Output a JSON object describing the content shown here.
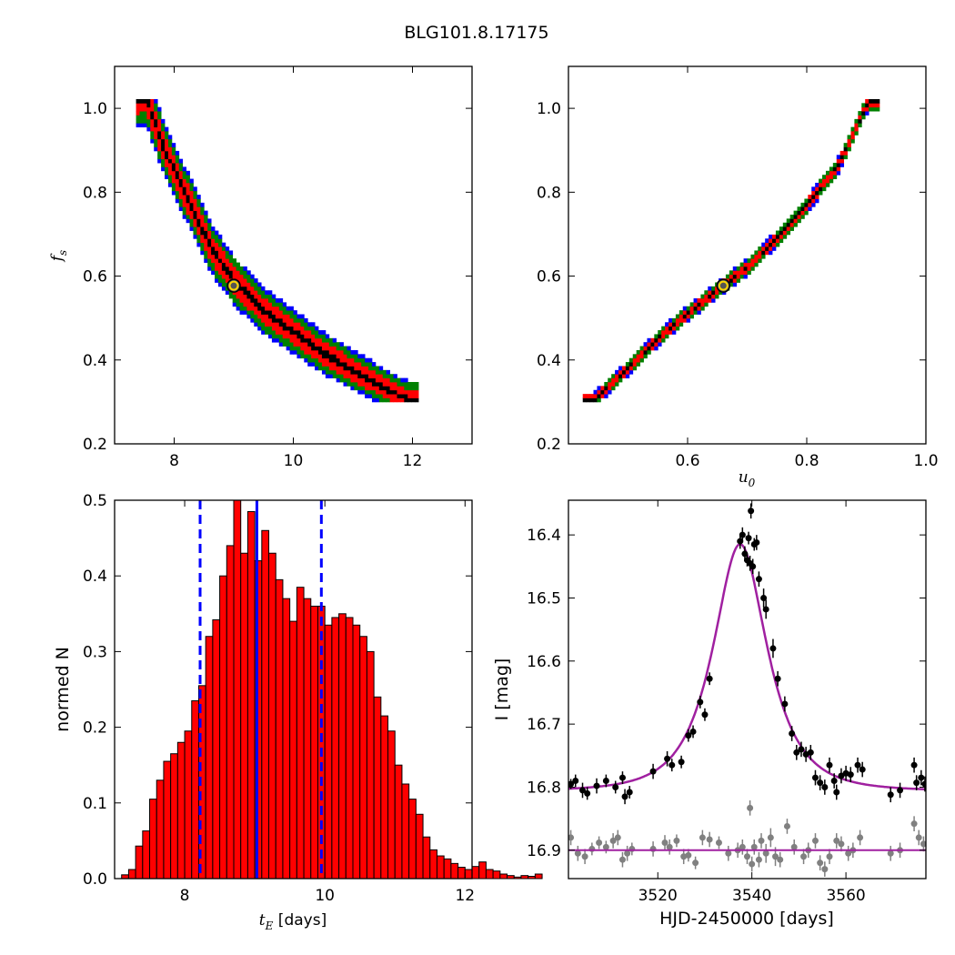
{
  "figure_title": "BLG101.8.17175",
  "chart_data": [
    {
      "type": "heatmap",
      "panel": "top-left",
      "xlabel": "",
      "ylabel": "f_s",
      "ylabel_main": "f",
      "ylabel_sub": "s",
      "xlim": [
        7.0,
        13.0
      ],
      "ylim": [
        0.2,
        1.1
      ],
      "xticks": [
        8,
        10,
        12
      ],
      "xticklabels": [
        "8",
        "10",
        "12"
      ],
      "yticks": [
        0.2,
        0.4,
        0.6,
        0.8,
        1.0
      ],
      "yticklabels": [
        "0.2",
        "0.4",
        "0.6",
        "0.8",
        "1.0"
      ],
      "confidence_colors": {
        "outer": "#0000ff",
        "mid": "#008000",
        "inner": "#ff0000",
        "core": "#000000"
      },
      "ridge": [
        [
          7.5,
          1.02
        ],
        [
          7.8,
          0.9
        ],
        [
          8.2,
          0.78
        ],
        [
          8.6,
          0.66
        ],
        [
          9.0,
          0.58
        ],
        [
          9.5,
          0.51
        ],
        [
          10.0,
          0.46
        ],
        [
          10.5,
          0.41
        ],
        [
          11.0,
          0.37
        ],
        [
          11.5,
          0.33
        ],
        [
          11.9,
          0.3
        ]
      ],
      "best_fit": [
        9.0,
        0.577
      ]
    },
    {
      "type": "heatmap",
      "panel": "top-right",
      "xlabel": "u_0",
      "xlabel_main": "u",
      "xlabel_sub": "0",
      "ylabel": "",
      "xlim": [
        0.4,
        1.0
      ],
      "ylim": [
        0.2,
        1.1
      ],
      "xticks": [
        0.6,
        0.8,
        1.0
      ],
      "xticklabels": [
        "0.6",
        "0.8",
        "1.0"
      ],
      "yticks": [
        0.2,
        0.4,
        0.6,
        0.8,
        1.0
      ],
      "yticklabels": [
        "0.2",
        "0.4",
        "0.6",
        "0.8",
        "1.0"
      ],
      "confidence_colors": {
        "outer": "#0000ff",
        "mid": "#008000",
        "inner": "#ff0000",
        "core": "#000000"
      },
      "ridge": [
        [
          0.44,
          0.3
        ],
        [
          0.5,
          0.38
        ],
        [
          0.55,
          0.45
        ],
        [
          0.6,
          0.51
        ],
        [
          0.66,
          0.577
        ],
        [
          0.7,
          0.62
        ],
        [
          0.75,
          0.69
        ],
        [
          0.8,
          0.77
        ],
        [
          0.85,
          0.86
        ],
        [
          0.9,
          1.01
        ]
      ],
      "best_fit": [
        0.66,
        0.577
      ]
    },
    {
      "type": "bar",
      "panel": "bottom-left",
      "xlabel": "t_E",
      "xlabel_main": "t",
      "xlabel_sub": "E",
      "xlabel_suffix": "[days]",
      "ylabel": "normed N",
      "xlim": [
        7.0,
        12.1
      ],
      "ylim": [
        0.0,
        0.5
      ],
      "xticks": [
        8,
        10,
        12
      ],
      "xticklabels": [
        "8",
        "10",
        "12"
      ],
      "yticks": [
        0.0,
        0.1,
        0.2,
        0.3,
        0.4,
        0.5
      ],
      "yticklabels": [
        "0.0",
        "0.1",
        "0.2",
        "0.3",
        "0.4",
        "0.5"
      ],
      "bin_start": 7.1,
      "bin_width": 0.1,
      "values": [
        0.005,
        0.012,
        0.043,
        0.063,
        0.105,
        0.13,
        0.155,
        0.165,
        0.18,
        0.195,
        0.235,
        0.255,
        0.32,
        0.342,
        0.4,
        0.44,
        0.5,
        0.43,
        0.485,
        0.42,
        0.46,
        0.43,
        0.395,
        0.37,
        0.34,
        0.385,
        0.37,
        0.36,
        0.36,
        0.335,
        0.345,
        0.35,
        0.345,
        0.335,
        0.32,
        0.3,
        0.24,
        0.215,
        0.195,
        0.15,
        0.125,
        0.105,
        0.085,
        0.055,
        0.038,
        0.03,
        0.026,
        0.02,
        0.015,
        0.012,
        0.016,
        0.022,
        0.012,
        0.01,
        0.006,
        0.004,
        0.002,
        0.004,
        0.003,
        0.006
      ],
      "bar_color": "#ff0000",
      "median": 9.03,
      "lower": 8.22,
      "upper": 9.95
    },
    {
      "type": "line",
      "panel": "bottom-right",
      "xlabel": "HJD-2450000 [days]",
      "ylabel": "I [mag]",
      "xlim": [
        3501,
        3577
      ],
      "ylim": [
        16.945,
        16.345
      ],
      "inverted_y": true,
      "xticks": [
        3520,
        3540,
        3560
      ],
      "xticklabels": [
        "3520",
        "3540",
        "3560"
      ],
      "yticks": [
        16.4,
        16.5,
        16.6,
        16.7,
        16.8,
        16.9
      ],
      "yticklabels": [
        "16.4",
        "16.5",
        "16.6",
        "16.7",
        "16.8",
        "16.9"
      ],
      "model_color": "#a020a0",
      "model": {
        "baseline": 16.806,
        "t0": 3537.5,
        "u0": 0.66,
        "tE": 9.03,
        "fs": 0.577
      },
      "residual_level": 16.9,
      "series": [
        {
          "color": "#000000",
          "points": [
            [
              3501.5,
              16.795,
              0.008
            ],
            [
              3502.5,
              16.79,
              0.01
            ],
            [
              3504.0,
              16.805,
              0.012
            ],
            [
              3505.0,
              16.81,
              0.01
            ],
            [
              3507.0,
              16.798,
              0.012
            ],
            [
              3509.0,
              16.79,
              0.01
            ],
            [
              3511.0,
              16.8,
              0.01
            ],
            [
              3512.5,
              16.785,
              0.01
            ],
            [
              3513.0,
              16.815,
              0.012
            ],
            [
              3514.0,
              16.808,
              0.01
            ],
            [
              3519.0,
              16.775,
              0.012
            ],
            [
              3522.0,
              16.755,
              0.012
            ],
            [
              3523.0,
              16.765,
              0.01
            ],
            [
              3525.0,
              16.76,
              0.01
            ],
            [
              3526.5,
              16.718,
              0.01
            ],
            [
              3527.5,
              16.712,
              0.01
            ],
            [
              3529.0,
              16.665,
              0.01
            ],
            [
              3530.0,
              16.685,
              0.01
            ],
            [
              3531.0,
              16.628,
              0.01
            ],
            [
              3537.5,
              16.41,
              0.012
            ],
            [
              3538.0,
              16.4,
              0.012
            ],
            [
              3538.5,
              16.43,
              0.012
            ],
            [
              3539.0,
              16.44,
              0.01
            ],
            [
              3539.3,
              16.405,
              0.01
            ],
            [
              3539.6,
              16.445,
              0.012
            ],
            [
              3539.8,
              16.362,
              0.012
            ],
            [
              3540.2,
              16.45,
              0.012
            ],
            [
              3540.5,
              16.415,
              0.01
            ],
            [
              3541.0,
              16.412,
              0.012
            ],
            [
              3541.5,
              16.47,
              0.012
            ],
            [
              3542.5,
              16.5,
              0.015
            ],
            [
              3543.0,
              16.518,
              0.015
            ],
            [
              3544.5,
              16.58,
              0.015
            ],
            [
              3545.5,
              16.628,
              0.012
            ],
            [
              3547.0,
              16.668,
              0.012
            ],
            [
              3548.5,
              16.715,
              0.012
            ],
            [
              3549.5,
              16.745,
              0.012
            ],
            [
              3550.5,
              16.74,
              0.012
            ],
            [
              3551.5,
              16.748,
              0.012
            ],
            [
              3552.5,
              16.745,
              0.012
            ],
            [
              3553.5,
              16.785,
              0.012
            ],
            [
              3554.5,
              16.793,
              0.012
            ],
            [
              3555.5,
              16.8,
              0.012
            ],
            [
              3556.5,
              16.765,
              0.012
            ],
            [
              3557.5,
              16.79,
              0.012
            ],
            [
              3558.0,
              16.808,
              0.012
            ],
            [
              3559.0,
              16.782,
              0.012
            ],
            [
              3560.0,
              16.778,
              0.012
            ],
            [
              3561.0,
              16.78,
              0.012
            ],
            [
              3562.5,
              16.765,
              0.012
            ],
            [
              3563.5,
              16.772,
              0.012
            ],
            [
              3569.5,
              16.812,
              0.012
            ],
            [
              3571.5,
              16.805,
              0.012
            ],
            [
              3574.5,
              16.765,
              0.012
            ],
            [
              3575.0,
              16.793,
              0.012
            ],
            [
              3576.0,
              16.785,
              0.012
            ],
            [
              3576.8,
              16.795,
              0.012
            ]
          ]
        },
        {
          "color": "#808080",
          "points": [
            [
              3501.5,
              16.88,
              0.012
            ],
            [
              3503.0,
              16.905,
              0.012
            ],
            [
              3504.5,
              16.91,
              0.012
            ],
            [
              3506.0,
              16.898,
              0.01
            ],
            [
              3507.5,
              16.888,
              0.01
            ],
            [
              3509.0,
              16.895,
              0.01
            ],
            [
              3510.5,
              16.885,
              0.012
            ],
            [
              3511.5,
              16.88,
              0.012
            ],
            [
              3512.5,
              16.915,
              0.012
            ],
            [
              3513.5,
              16.905,
              0.012
            ],
            [
              3514.5,
              16.898,
              0.01
            ],
            [
              3519.0,
              16.898,
              0.012
            ],
            [
              3521.5,
              16.888,
              0.012
            ],
            [
              3522.5,
              16.895,
              0.012
            ],
            [
              3524.0,
              16.885,
              0.01
            ],
            [
              3525.5,
              16.91,
              0.012
            ],
            [
              3526.5,
              16.908,
              0.01
            ],
            [
              3528.0,
              16.92,
              0.01
            ],
            [
              3529.5,
              16.88,
              0.012
            ],
            [
              3531.0,
              16.883,
              0.012
            ],
            [
              3533.0,
              16.888,
              0.01
            ],
            [
              3535.0,
              16.905,
              0.012
            ],
            [
              3537.0,
              16.9,
              0.012
            ],
            [
              3538.0,
              16.895,
              0.012
            ],
            [
              3539.0,
              16.91,
              0.012
            ],
            [
              3539.6,
              16.833,
              0.012
            ],
            [
              3540.0,
              16.922,
              0.012
            ],
            [
              3540.5,
              16.895,
              0.012
            ],
            [
              3541.5,
              16.915,
              0.012
            ],
            [
              3542.0,
              16.885,
              0.012
            ],
            [
              3543.0,
              16.905,
              0.015
            ],
            [
              3544.0,
              16.88,
              0.015
            ],
            [
              3545.0,
              16.91,
              0.015
            ],
            [
              3546.0,
              16.915,
              0.012
            ],
            [
              3547.5,
              16.862,
              0.012
            ],
            [
              3549.0,
              16.895,
              0.012
            ],
            [
              3551.0,
              16.91,
              0.012
            ],
            [
              3552.0,
              16.9,
              0.012
            ],
            [
              3553.5,
              16.885,
              0.012
            ],
            [
              3554.5,
              16.92,
              0.012
            ],
            [
              3555.5,
              16.93,
              0.012
            ],
            [
              3556.5,
              16.91,
              0.012
            ],
            [
              3558.0,
              16.885,
              0.012
            ],
            [
              3559.0,
              16.89,
              0.012
            ],
            [
              3560.5,
              16.905,
              0.012
            ],
            [
              3561.5,
              16.9,
              0.012
            ],
            [
              3563.0,
              16.88,
              0.012
            ],
            [
              3569.5,
              16.905,
              0.012
            ],
            [
              3571.5,
              16.9,
              0.012
            ],
            [
              3574.5,
              16.858,
              0.012
            ],
            [
              3575.5,
              16.88,
              0.012
            ],
            [
              3576.5,
              16.89,
              0.012
            ]
          ]
        }
      ]
    }
  ]
}
